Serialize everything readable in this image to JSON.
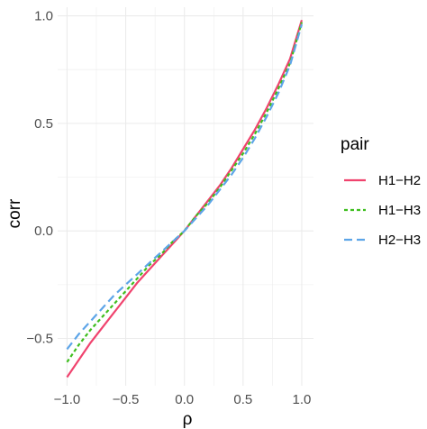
{
  "chart_data": {
    "type": "line",
    "xlabel": "ρ",
    "ylabel": "corr",
    "xlim": [
      -1.08,
      1.1
    ],
    "ylim": [
      -0.72,
      1.04
    ],
    "x_ticks": [
      -1.0,
      -0.5,
      0.0,
      0.5,
      1.0
    ],
    "x_tick_labels": [
      "−1.0",
      "−0.5",
      "0.0",
      "0.5",
      "1.0"
    ],
    "y_ticks": [
      -0.5,
      0.0,
      0.5,
      1.0
    ],
    "y_tick_labels": [
      "−0.5",
      "0.0",
      "0.5",
      "1.0"
    ],
    "grid": true,
    "legend": {
      "title": "pair",
      "position": "right"
    },
    "x": [
      -1.0,
      -0.9,
      -0.8,
      -0.7,
      -0.6,
      -0.5,
      -0.4,
      -0.3,
      -0.2,
      -0.1,
      0.0,
      0.1,
      0.2,
      0.3,
      0.4,
      0.5,
      0.6,
      0.7,
      0.8,
      0.9,
      1.0
    ],
    "series": [
      {
        "name": "H1−H2",
        "color": "#F0436E",
        "dash": "solid",
        "values": [
          -0.68,
          -0.6,
          -0.52,
          -0.45,
          -0.38,
          -0.31,
          -0.24,
          -0.18,
          -0.12,
          -0.06,
          0.0,
          0.07,
          0.14,
          0.21,
          0.29,
          0.38,
          0.47,
          0.57,
          0.68,
          0.8,
          0.98
        ]
      },
      {
        "name": "H1−H3",
        "color": "#3EBE1E",
        "dash": "dotted",
        "values": [
          -0.61,
          -0.53,
          -0.46,
          -0.4,
          -0.34,
          -0.28,
          -0.22,
          -0.16,
          -0.11,
          -0.05,
          0.0,
          0.07,
          0.13,
          0.2,
          0.28,
          0.36,
          0.45,
          0.55,
          0.66,
          0.78,
          0.97
        ]
      },
      {
        "name": "H2−H3",
        "color": "#5DA5E8",
        "dash": "dashed",
        "values": [
          -0.55,
          -0.48,
          -0.42,
          -0.36,
          -0.3,
          -0.25,
          -0.2,
          -0.15,
          -0.1,
          -0.05,
          0.0,
          0.06,
          0.12,
          0.19,
          0.26,
          0.34,
          0.43,
          0.53,
          0.64,
          0.77,
          0.96
        ]
      }
    ]
  }
}
